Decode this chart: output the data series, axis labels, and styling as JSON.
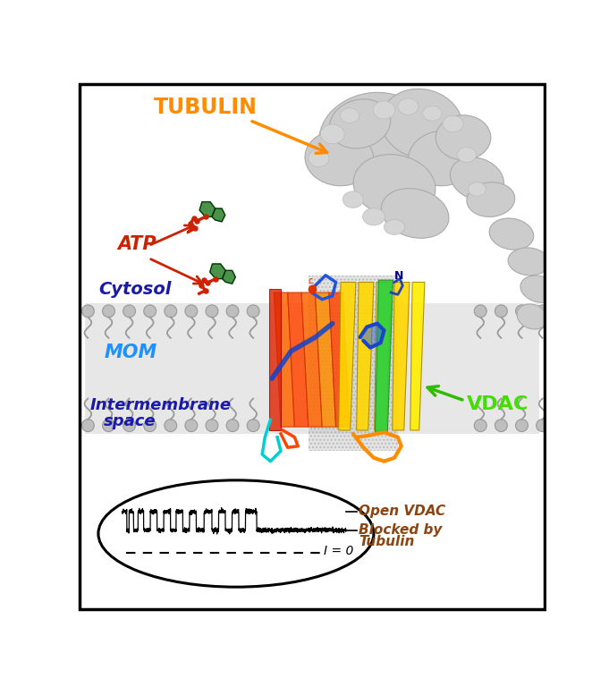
{
  "background_color": "#ffffff",
  "border_color": "#000000",
  "tubulin_label": "TUBULIN",
  "tubulin_color": "#FF8C00",
  "atp_label": "ATP",
  "atp_color": "#CC2200",
  "cytosol_label": "Cytosol",
  "cytosol_color": "#1a1aaa",
  "mom_label": "MOM",
  "mom_color": "#1E90FF",
  "intermembrane_label": "Intermembrane\nspace",
  "intermembrane_color": "#1a1aaa",
  "vdac_label": "VDAC",
  "vdac_color": "#44DD00",
  "open_vdac_label": "Open VDAC",
  "open_vdac_color": "#8B4513",
  "blocked_label": "Blocked by\nTubulin",
  "blocked_color": "#8B4513",
  "i_zero_label": "I = 0",
  "membrane_gray": "#BEBEBE",
  "membrane_outline": "#999999"
}
